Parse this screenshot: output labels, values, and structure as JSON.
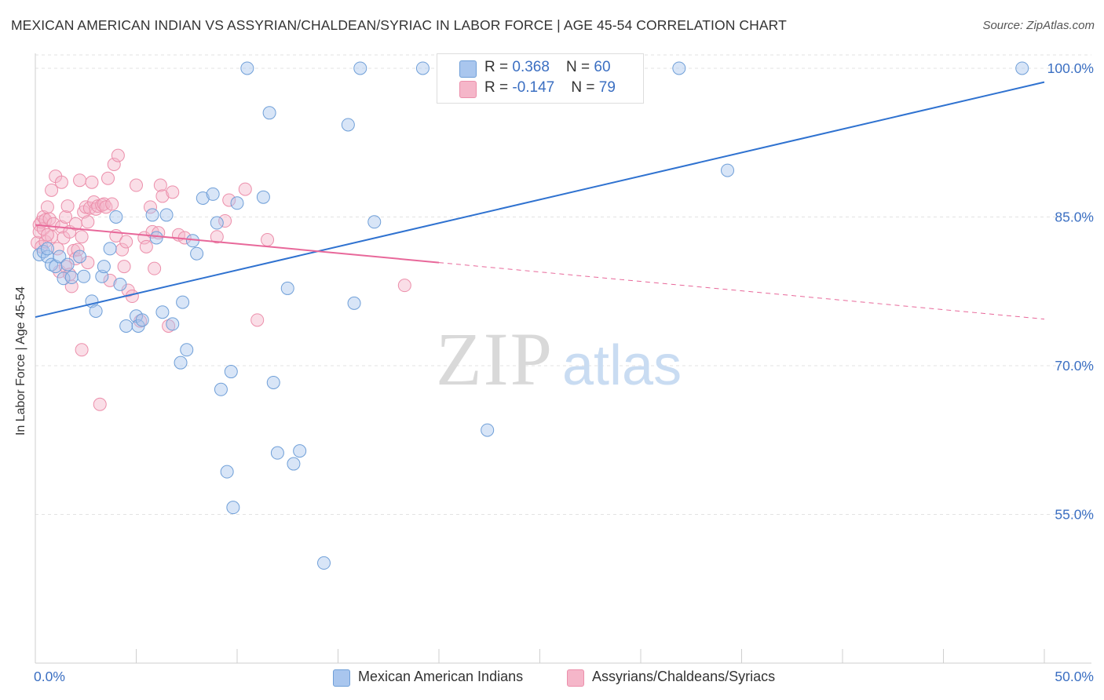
{
  "header": {
    "title": "MEXICAN AMERICAN INDIAN VS ASSYRIAN/CHALDEAN/SYRIAC IN LABOR FORCE | AGE 45-54 CORRELATION CHART",
    "source": "Source: ZipAtlas.com"
  },
  "watermark": {
    "zip": "ZIP",
    "atlas": "atlas"
  },
  "legend_top": {
    "rows": [
      {
        "r_label": "R = ",
        "r_value": "0.368",
        "n_label": "N = ",
        "n_value": "60"
      },
      {
        "r_label": "R = ",
        "r_value": "-0.147",
        "n_label": "N = ",
        "n_value": "79"
      }
    ]
  },
  "colors": {
    "blue_fill": "#a9c6ee",
    "blue_stroke": "#6f9fd8",
    "blue_line": "#2f72d0",
    "pink_fill": "#f5b6c9",
    "pink_stroke": "#ec8fab",
    "pink_line": "#e8689a",
    "tick_label": "#3b6fc2"
  },
  "chart_data": {
    "type": "scatter",
    "title": "MEXICAN AMERICAN INDIAN VS ASSYRIAN/CHALDEAN/SYRIAC IN LABOR FORCE | AGE 45-54 CORRELATION CHART",
    "ylabel": "In Labor Force | Age 45-54",
    "xlabel": "",
    "xlim": [
      0,
      50
    ],
    "ylim": [
      40,
      101.5
    ],
    "x_tick_labels": [
      "0.0%",
      "50.0%"
    ],
    "y_tick_labels": [
      {
        "value": 100,
        "label": "100.0%"
      },
      {
        "value": 85,
        "label": "85.0%"
      },
      {
        "value": 70,
        "label": "70.0%"
      },
      {
        "value": 55,
        "label": "55.0%"
      }
    ],
    "grid": true,
    "legend_position": "bottom",
    "series": [
      {
        "name": "Mexican American Indians",
        "r": 0.368,
        "n": 60,
        "trend": {
          "x0": 0,
          "y0": 74.9,
          "x1": 50,
          "y1": 98.6,
          "dashed_from": null
        },
        "points": [
          [
            0.2,
            81.2
          ],
          [
            0.4,
            81.5
          ],
          [
            0.6,
            81.0
          ],
          [
            0.8,
            80.2
          ],
          [
            1.0,
            80.0
          ],
          [
            1.2,
            81.0
          ],
          [
            1.4,
            78.8
          ],
          [
            1.6,
            80.2
          ],
          [
            1.8,
            78.9
          ],
          [
            2.2,
            81.0
          ],
          [
            2.4,
            79.0
          ],
          [
            2.8,
            76.5
          ],
          [
            3.0,
            75.5
          ],
          [
            3.3,
            79.0
          ],
          [
            3.4,
            80.0
          ],
          [
            3.7,
            81.8
          ],
          [
            4.0,
            85.0
          ],
          [
            4.2,
            78.2
          ],
          [
            4.5,
            74.0
          ],
          [
            5.0,
            75.0
          ],
          [
            5.1,
            74.0
          ],
          [
            5.3,
            74.6
          ],
          [
            5.8,
            85.2
          ],
          [
            6.0,
            82.9
          ],
          [
            6.3,
            75.4
          ],
          [
            6.5,
            85.2
          ],
          [
            6.8,
            74.2
          ],
          [
            7.2,
            70.3
          ],
          [
            7.3,
            76.4
          ],
          [
            7.5,
            71.6
          ],
          [
            7.8,
            82.6
          ],
          [
            8.0,
            81.3
          ],
          [
            8.3,
            86.9
          ],
          [
            8.8,
            87.3
          ],
          [
            9.0,
            84.4
          ],
          [
            9.2,
            67.6
          ],
          [
            9.5,
            59.3
          ],
          [
            9.7,
            69.4
          ],
          [
            9.8,
            55.7
          ],
          [
            10.0,
            86.4
          ],
          [
            10.5,
            100.0
          ],
          [
            11.3,
            87.0
          ],
          [
            11.6,
            95.5
          ],
          [
            11.8,
            68.3
          ],
          [
            12.0,
            61.2
          ],
          [
            12.5,
            77.8
          ],
          [
            12.8,
            60.1
          ],
          [
            13.1,
            61.4
          ],
          [
            14.3,
            50.1
          ],
          [
            15.5,
            94.3
          ],
          [
            15.8,
            76.3
          ],
          [
            16.1,
            100.0
          ],
          [
            16.8,
            84.5
          ],
          [
            19.2,
            100.0
          ],
          [
            22.4,
            63.5
          ],
          [
            25.9,
            100.0
          ],
          [
            31.9,
            100.0
          ],
          [
            34.3,
            89.7
          ],
          [
            48.9,
            100.0
          ],
          [
            0.6,
            81.8
          ]
        ]
      },
      {
        "name": "Assyrians/Chaldeans/Syriacs",
        "r": -0.147,
        "n": 79,
        "trend": {
          "x0": 0,
          "y0": 84.2,
          "x1": 50,
          "y1": 74.7,
          "dashed_from": 20
        },
        "points": [
          [
            0.1,
            82.4
          ],
          [
            0.2,
            84.2
          ],
          [
            0.2,
            83.5
          ],
          [
            0.3,
            84.5
          ],
          [
            0.3,
            82.0
          ],
          [
            0.4,
            85.0
          ],
          [
            0.4,
            83.8
          ],
          [
            0.5,
            84.7
          ],
          [
            0.5,
            82.5
          ],
          [
            0.6,
            86.0
          ],
          [
            0.7,
            84.8
          ],
          [
            0.8,
            87.7
          ],
          [
            0.8,
            83.0
          ],
          [
            0.9,
            84.3
          ],
          [
            1.0,
            89.1
          ],
          [
            1.1,
            81.8
          ],
          [
            1.2,
            79.5
          ],
          [
            1.3,
            88.5
          ],
          [
            1.3,
            84.0
          ],
          [
            1.4,
            82.9
          ],
          [
            1.5,
            80.0
          ],
          [
            1.5,
            85.0
          ],
          [
            1.6,
            86.1
          ],
          [
            1.7,
            83.5
          ],
          [
            1.8,
            78.0
          ],
          [
            1.9,
            81.6
          ],
          [
            2.0,
            80.8
          ],
          [
            2.0,
            84.3
          ],
          [
            2.1,
            81.7
          ],
          [
            2.2,
            88.7
          ],
          [
            2.3,
            71.6
          ],
          [
            2.3,
            83.0
          ],
          [
            2.4,
            85.5
          ],
          [
            2.5,
            86.0
          ],
          [
            2.6,
            84.5
          ],
          [
            2.7,
            85.9
          ],
          [
            2.8,
            88.5
          ],
          [
            2.9,
            86.5
          ],
          [
            3.0,
            85.8
          ],
          [
            3.1,
            86.1
          ],
          [
            3.2,
            66.1
          ],
          [
            3.3,
            86.2
          ],
          [
            3.4,
            86.3
          ],
          [
            3.5,
            86.0
          ],
          [
            3.6,
            88.9
          ],
          [
            3.8,
            86.3
          ],
          [
            3.9,
            90.3
          ],
          [
            4.0,
            83.1
          ],
          [
            4.1,
            91.2
          ],
          [
            4.3,
            81.7
          ],
          [
            4.4,
            80.0
          ],
          [
            4.6,
            77.6
          ],
          [
            4.8,
            77.0
          ],
          [
            5.0,
            88.2
          ],
          [
            5.2,
            74.5
          ],
          [
            5.4,
            82.9
          ],
          [
            5.5,
            82.0
          ],
          [
            5.7,
            86.0
          ],
          [
            5.8,
            83.5
          ],
          [
            5.9,
            79.8
          ],
          [
            6.1,
            83.4
          ],
          [
            6.2,
            88.2
          ],
          [
            6.3,
            87.1
          ],
          [
            6.6,
            74.0
          ],
          [
            6.8,
            87.5
          ],
          [
            7.1,
            83.2
          ],
          [
            7.4,
            82.9
          ],
          [
            9.0,
            83.0
          ],
          [
            9.4,
            84.6
          ],
          [
            9.6,
            86.7
          ],
          [
            10.4,
            87.8
          ],
          [
            11.0,
            74.6
          ],
          [
            11.5,
            82.7
          ],
          [
            18.3,
            78.1
          ],
          [
            0.6,
            83.2
          ],
          [
            1.7,
            79.2
          ],
          [
            2.6,
            80.4
          ],
          [
            3.7,
            78.6
          ],
          [
            4.5,
            82.5
          ]
        ]
      }
    ]
  },
  "legend_bottom": {
    "items": [
      {
        "label": "Mexican American Indians"
      },
      {
        "label": "Assyrians/Chaldeans/Syriacs"
      }
    ]
  }
}
